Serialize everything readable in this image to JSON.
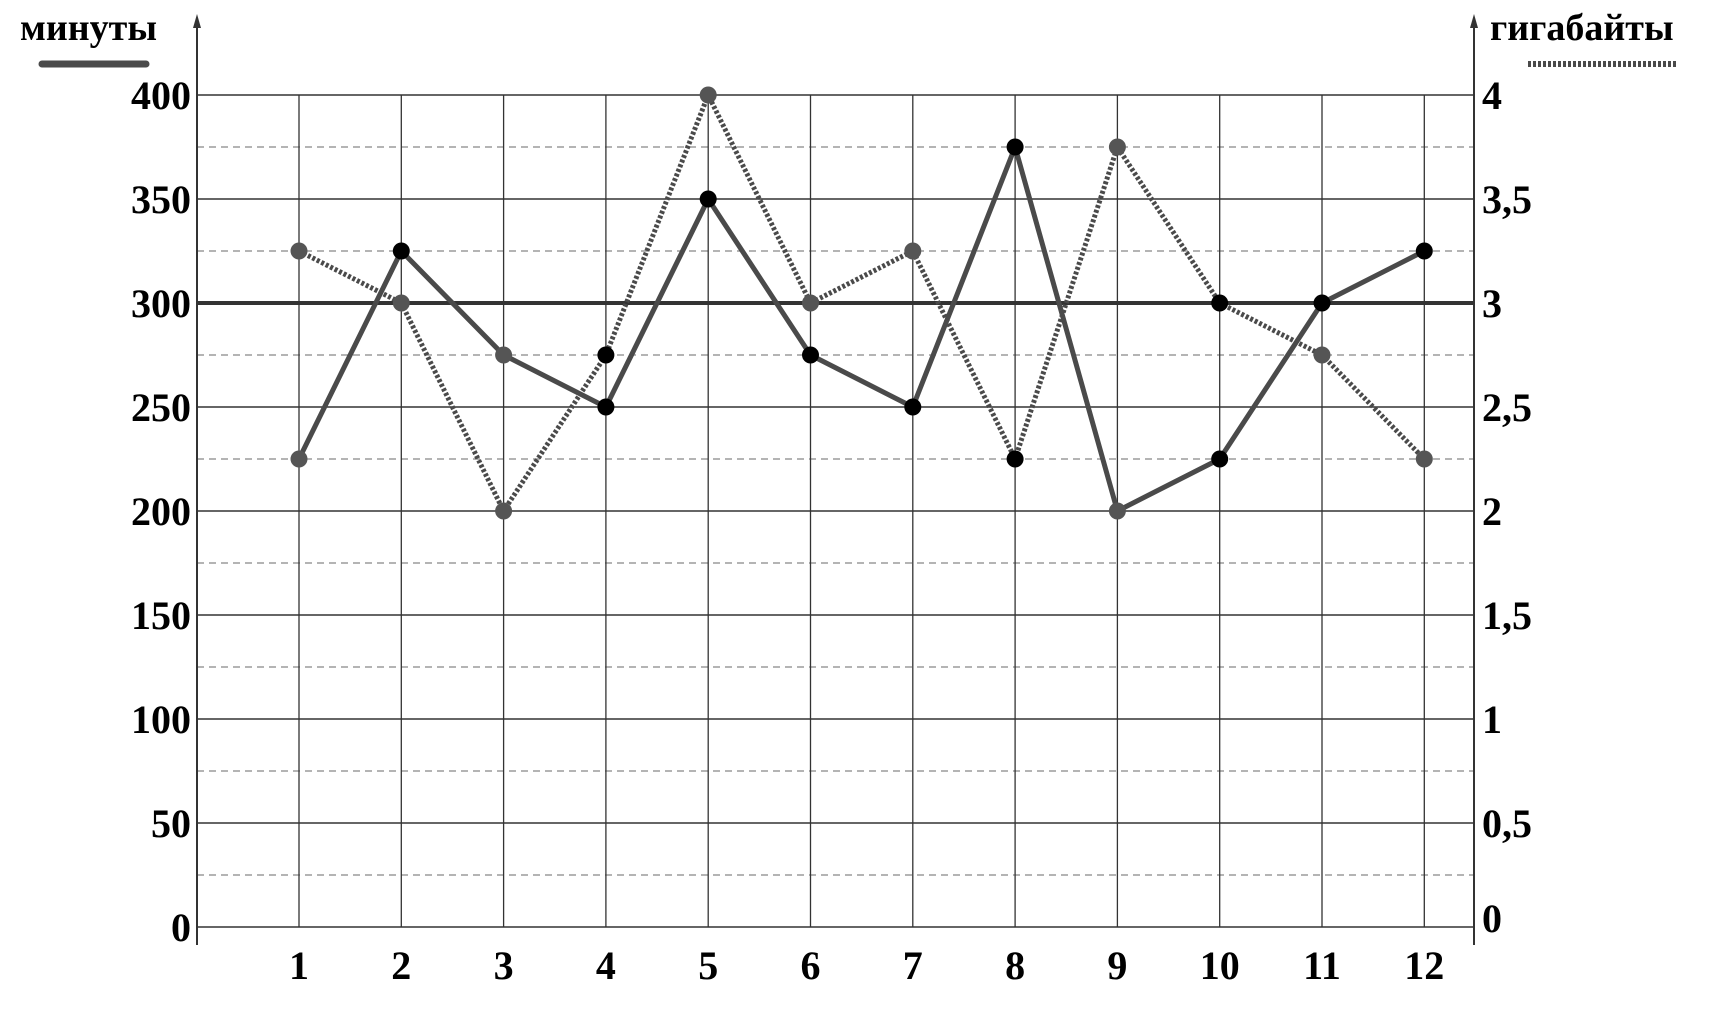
{
  "chart_data": {
    "type": "line",
    "title": "",
    "left_axis_label": "минуты",
    "right_axis_label": "гигабайты",
    "categories": [
      "1",
      "2",
      "3",
      "4",
      "5",
      "6",
      "7",
      "8",
      "9",
      "10",
      "11",
      "12"
    ],
    "left_ticks": [
      "0",
      "50",
      "100",
      "150",
      "200",
      "250",
      "300",
      "350",
      "400"
    ],
    "right_ticks": [
      "0",
      "0,5",
      "1",
      "1,5",
      "2",
      "2,5",
      "3",
      "3,5",
      "4"
    ],
    "ylim_left": [
      0,
      400
    ],
    "ylim_right": [
      0,
      4
    ],
    "grid": true,
    "highlight_line_left": 300,
    "series": [
      {
        "name": "минуты",
        "axis": "left",
        "style": "solid",
        "color": "#4a4a4a",
        "values": [
          225,
          325,
          275,
          250,
          350,
          275,
          250,
          375,
          200,
          225,
          300,
          325
        ],
        "marker_colors": [
          "#555555",
          "#000000",
          "#555555",
          "#000000",
          "#000000",
          "#000000",
          "#000000",
          "#000000",
          "#555555",
          "#000000",
          "#000000",
          "#000000"
        ]
      },
      {
        "name": "гигабайты",
        "axis": "right",
        "style": "dotted",
        "color": "#4a4a4a",
        "values": [
          3.25,
          3,
          2,
          2.75,
          4,
          3,
          3.25,
          2.25,
          3.75,
          3,
          2.75,
          2.25
        ],
        "marker_colors": [
          "#555555",
          "#555555",
          "#555555",
          "#000000",
          "#555555",
          "#555555",
          "#555555",
          "#000000",
          "#555555",
          "#000000",
          "#555555",
          "#555555"
        ]
      }
    ]
  }
}
